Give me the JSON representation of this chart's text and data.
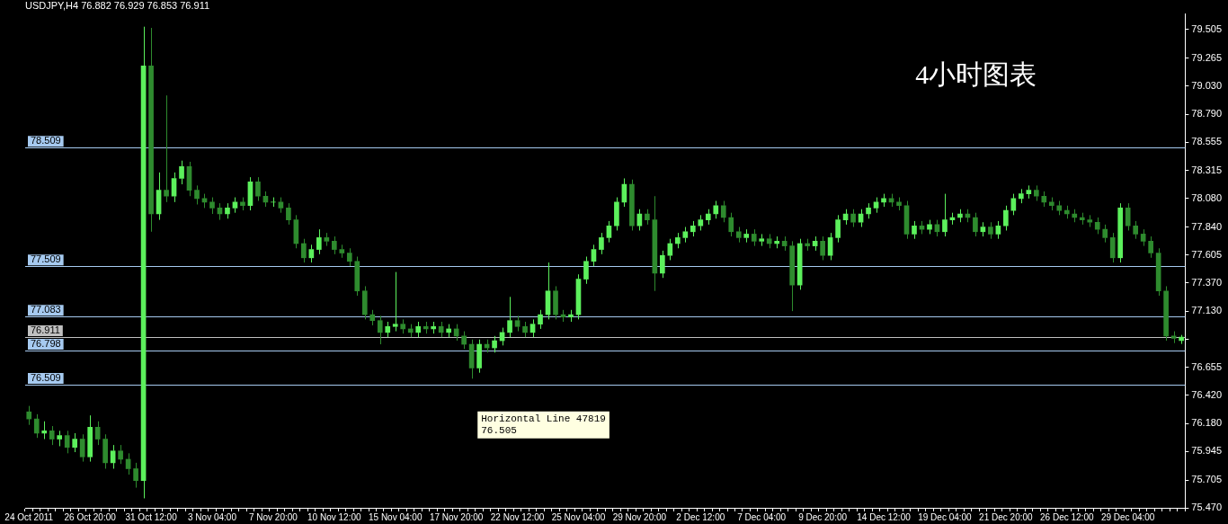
{
  "chart_data": {
    "type": "candlestick",
    "title": "USDJPY,H4 76.882 76.929 76.853 76.911",
    "annotations": [
      "4小时图表",
      "Horizontal Line 47819\n76.505"
    ],
    "colors": [
      "#2e8b2e",
      "#2e8b2e",
      "#5cf05c",
      "#2e8b2e",
      "#5cf05c",
      "#2e8b2e",
      "#5cf05c",
      "#2e8b2e",
      "#5cf05c",
      "#2e8b2e",
      "#2e8b2e",
      "#5cf05c",
      "#2e8b2e",
      "#2e8b2e",
      "#2e8b2e",
      "#5cf05c",
      "#2e8b2e",
      "#5cf05c",
      "#2e8b2e",
      "#5cf05c",
      "#5cf05c",
      "#2e8b2e",
      "#2e8b2e",
      "#2e8b2e",
      "#2e8b2e",
      "#2e8b2e",
      "#5cf05c",
      "#5cf05c",
      "#2e8b2e",
      "#5cf05c",
      "#2e8b2e",
      "#2e8b2e",
      "#5cf05c",
      "#2e8b2e",
      "#2e8b2e",
      "#2e8b2e",
      "#2e8b2e",
      "#5cf05c",
      "#5cf05c",
      "#2e8b2e",
      "#2e8b2e",
      "#2e8b2e",
      "#2e8b2e",
      "#2e8b2e",
      "#2e8b2e",
      "#2e8b2e",
      "#2e8b2e",
      "#5cf05c",
      "#5cf05c",
      "#2e8b2e",
      "#2e8b2e",
      "#5cf05c",
      "#2e8b2e",
      "#5cf05c",
      "#2e8b2e",
      "#5cf05c",
      "#2e8b2e",
      "#2e8b2e",
      "#2e8b2e",
      "#5cf05c",
      "#2e8b2e",
      "#5cf05c",
      "#5cf05c",
      "#5cf05c",
      "#2e8b2e",
      "#2e8b2e",
      "#5cf05c",
      "#5cf05c",
      "#5cf05c",
      "#2e8b2e",
      "#2e8b2e",
      "#5cf05c",
      "#5cf05c",
      "#5cf05c",
      "#5cf05c",
      "#5cf05c",
      "#5cf05c",
      "#5cf05c",
      "#5cf05c",
      "#2e8b2e",
      "#5cf05c",
      "#2e8b2e",
      "#2e8b2e",
      "#5cf05c",
      "#5cf05c",
      "#5cf05c",
      "#5cf05c",
      "#5cf05c",
      "#5cf05c",
      "#5cf05c",
      "#5cf05c",
      "#2e8b2e",
      "#2e8b2e",
      "#2e8b2e",
      "#5cf05c",
      "#2e8b2e",
      "#5cf05c",
      "#2e8b2e",
      "#5cf05c",
      "#2e8b2e",
      "#2e8b2e",
      "#5cf05c",
      "#2e8b2e",
      "#5cf05c",
      "#2e8b2e",
      "#5cf05c",
      "#5cf05c",
      "#5cf05c",
      "#2e8b2e",
      "#5cf05c",
      "#5cf05c",
      "#5cf05c",
      "#5cf05c",
      "#2e8b2e",
      "#2e8b2e",
      "#2e8b2e",
      "#5cf05c",
      "#2e8b2e",
      "#5cf05c",
      "#2e8b2e",
      "#5cf05c",
      "#5cf05c",
      "#5cf05c",
      "#2e8b2e",
      "#2e8b2e",
      "#5cf05c",
      "#2e8b2e",
      "#5cf05c",
      "#5cf05c",
      "#5cf05c",
      "#5cf05c",
      "#5cf05c",
      "#2e8b2e",
      "#2e8b2e",
      "#2e8b2e",
      "#2e8b2e",
      "#2e8b2e",
      "#2e8b2e",
      "#2e8b2e",
      "#2e8b2e",
      "#2e8b2e",
      "#2e8b2e",
      "#2e8b2e",
      "#5cf05c",
      "#2e8b2e",
      "#2e8b2e",
      "#2e8b2e",
      "#2e8b2e",
      "#2e8b2e",
      "#2e8b2e",
      "#2e8b2e",
      "#5cf05c"
    ],
    "grid": false,
    "legend": false,
    "ylim": [
      75.47,
      79.64
    ],
    "yticks": [
      {
        "value": 75.47,
        "label": "75.470"
      },
      {
        "value": 75.705,
        "label": "75.705"
      },
      {
        "value": 75.945,
        "label": "75.945"
      },
      {
        "value": 76.18,
        "label": "76.180"
      },
      {
        "value": 76.42,
        "label": "76.420"
      },
      {
        "value": 76.655,
        "label": "76.655"
      },
      {
        "value": 76.895,
        "label": null
      },
      {
        "value": 77.13,
        "label": "77.130"
      },
      {
        "value": 77.37,
        "label": "77.370"
      },
      {
        "value": 77.605,
        "label": "77.605"
      },
      {
        "value": 77.84,
        "label": "77.840"
      },
      {
        "value": 78.08,
        "label": "78.080"
      },
      {
        "value": 78.315,
        "label": "78.315"
      },
      {
        "value": 78.555,
        "label": "78.555"
      },
      {
        "value": 78.79,
        "label": "78.790"
      },
      {
        "value": 79.03,
        "label": "79.030"
      },
      {
        "value": 79.265,
        "label": "79.265"
      },
      {
        "value": 79.505,
        "label": "79.505"
      }
    ],
    "ref_lines": [
      {
        "axis": "y",
        "value": 78.509,
        "label": "78.509",
        "color": "#a6caf0"
      },
      {
        "axis": "y",
        "value": 77.509,
        "label": "77.509",
        "color": "#a6caf0"
      },
      {
        "axis": "y",
        "value": 77.083,
        "label": "77.083",
        "color": "#a6caf0"
      },
      {
        "axis": "y",
        "value": 76.911,
        "label": "76.911",
        "color": "#c0c0c0"
      },
      {
        "axis": "y",
        "value": 76.798,
        "label": "76.798",
        "color": "#a6caf0"
      },
      {
        "axis": "y",
        "value": 76.509,
        "label": "76.509",
        "color": "#a6caf0"
      }
    ],
    "categories": [
      "24 Oct 2011",
      null,
      null,
      null,
      null,
      null,
      null,
      null,
      "26 Oct 20:00",
      null,
      null,
      null,
      null,
      null,
      null,
      null,
      "31 Oct 12:00",
      null,
      null,
      null,
      null,
      null,
      null,
      null,
      "3 Nov 04:00",
      null,
      null,
      null,
      null,
      null,
      null,
      null,
      "7 Nov 20:00",
      null,
      null,
      null,
      null,
      null,
      null,
      null,
      "10 Nov 12:00",
      null,
      null,
      null,
      null,
      null,
      null,
      null,
      "15 Nov 04:00",
      null,
      null,
      null,
      null,
      null,
      null,
      null,
      "17 Nov 20:00",
      null,
      null,
      null,
      null,
      null,
      null,
      null,
      "22 Nov 12:00",
      null,
      null,
      null,
      null,
      null,
      null,
      null,
      "25 Nov 04:00",
      null,
      null,
      null,
      null,
      null,
      null,
      null,
      "29 Nov 20:00",
      null,
      null,
      null,
      null,
      null,
      null,
      null,
      "2 Dec 12:00",
      null,
      null,
      null,
      null,
      null,
      null,
      null,
      "7 Dec 04:00",
      null,
      null,
      null,
      null,
      null,
      null,
      null,
      "9 Dec 20:00",
      null,
      null,
      null,
      null,
      null,
      null,
      null,
      "14 Dec 12:00",
      null,
      null,
      null,
      null,
      null,
      null,
      null,
      "19 Dec 04:00",
      null,
      null,
      null,
      null,
      null,
      null,
      null,
      "21 Dec 20:00",
      null,
      null,
      null,
      null,
      null,
      null,
      null,
      "26 Dec 12:00",
      null,
      null,
      null,
      null,
      null,
      null,
      null,
      "29 Dec 04:00",
      null,
      null,
      null,
      null,
      null,
      null,
      null
    ],
    "ohlc": [
      [
        76.28,
        76.33,
        76.17,
        76.22
      ],
      [
        76.22,
        76.26,
        76.06,
        76.1
      ],
      [
        76.1,
        76.2,
        76.05,
        76.12
      ],
      [
        76.12,
        76.16,
        76.0,
        76.05
      ],
      [
        76.05,
        76.12,
        75.99,
        76.08
      ],
      [
        76.08,
        76.12,
        75.93,
        75.98
      ],
      [
        75.98,
        76.1,
        75.94,
        76.05
      ],
      [
        76.05,
        76.09,
        75.86,
        75.9
      ],
      [
        75.9,
        76.25,
        75.86,
        76.15
      ],
      [
        76.15,
        76.2,
        76.0,
        76.05
      ],
      [
        76.05,
        76.09,
        75.8,
        75.85
      ],
      [
        75.85,
        76.0,
        75.8,
        75.95
      ],
      [
        75.95,
        76.0,
        75.84,
        75.88
      ],
      [
        75.88,
        75.93,
        75.75,
        75.8
      ],
      [
        75.8,
        75.85,
        75.64,
        75.7
      ],
      [
        75.7,
        79.53,
        75.55,
        79.2
      ],
      [
        79.2,
        79.52,
        77.8,
        77.95
      ],
      [
        77.95,
        78.3,
        77.9,
        78.15
      ],
      [
        78.15,
        78.95,
        78.05,
        78.1
      ],
      [
        78.1,
        78.3,
        78.05,
        78.25
      ],
      [
        78.25,
        78.4,
        78.2,
        78.35
      ],
      [
        78.35,
        78.39,
        78.1,
        78.15
      ],
      [
        78.15,
        78.19,
        78.03,
        78.08
      ],
      [
        78.08,
        78.12,
        78.0,
        78.05
      ],
      [
        78.05,
        78.09,
        77.95,
        78.0
      ],
      [
        78.0,
        78.04,
        77.9,
        77.95
      ],
      [
        77.95,
        78.04,
        77.91,
        78.0
      ],
      [
        78.0,
        78.09,
        77.96,
        78.05
      ],
      [
        78.05,
        78.09,
        77.98,
        78.02
      ],
      [
        78.02,
        78.26,
        77.98,
        78.22
      ],
      [
        78.22,
        78.26,
        78.06,
        78.1
      ],
      [
        78.1,
        78.14,
        78.01,
        78.05
      ],
      [
        78.05,
        78.09,
        78.01,
        78.05
      ],
      [
        78.05,
        78.09,
        77.96,
        78.0
      ],
      [
        78.0,
        78.04,
        77.86,
        77.9
      ],
      [
        77.9,
        77.94,
        77.66,
        77.7
      ],
      [
        77.7,
        77.74,
        77.54,
        77.58
      ],
      [
        77.58,
        77.69,
        77.54,
        77.65
      ],
      [
        77.65,
        77.82,
        77.61,
        77.75
      ],
      [
        77.75,
        77.79,
        77.68,
        77.72
      ],
      [
        77.72,
        77.76,
        77.61,
        77.65
      ],
      [
        77.65,
        77.69,
        77.58,
        77.62
      ],
      [
        77.62,
        77.66,
        77.51,
        77.55
      ],
      [
        77.55,
        77.59,
        77.26,
        77.3
      ],
      [
        77.3,
        77.34,
        77.06,
        77.1
      ],
      [
        77.1,
        77.14,
        77.01,
        77.05
      ],
      [
        77.05,
        77.09,
        76.85,
        76.95
      ],
      [
        76.95,
        77.04,
        76.91,
        77.0
      ],
      [
        77.0,
        77.46,
        76.96,
        77.02
      ],
      [
        77.02,
        77.06,
        76.94,
        76.98
      ],
      [
        76.98,
        77.02,
        76.91,
        76.95
      ],
      [
        76.95,
        77.04,
        76.91,
        77.0
      ],
      [
        77.0,
        77.04,
        76.94,
        76.98
      ],
      [
        76.98,
        77.04,
        76.94,
        77.0
      ],
      [
        77.0,
        77.04,
        76.91,
        76.95
      ],
      [
        76.95,
        77.02,
        76.91,
        76.98
      ],
      [
        76.98,
        77.02,
        76.88,
        76.92
      ],
      [
        76.92,
        76.96,
        76.81,
        76.85
      ],
      [
        76.85,
        76.89,
        76.56,
        76.65
      ],
      [
        76.65,
        76.89,
        76.61,
        76.85
      ],
      [
        76.85,
        76.89,
        76.78,
        76.82
      ],
      [
        76.82,
        76.92,
        76.78,
        76.88
      ],
      [
        76.88,
        76.99,
        76.84,
        76.95
      ],
      [
        76.95,
        77.25,
        76.91,
        77.05
      ],
      [
        77.05,
        77.09,
        76.96,
        77.0
      ],
      [
        77.0,
        77.04,
        76.91,
        76.95
      ],
      [
        76.95,
        77.06,
        76.91,
        77.02
      ],
      [
        77.02,
        77.14,
        76.98,
        77.1
      ],
      [
        77.1,
        77.54,
        77.06,
        77.3
      ],
      [
        77.3,
        77.34,
        77.06,
        77.1
      ],
      [
        77.1,
        77.14,
        77.04,
        77.08
      ],
      [
        77.08,
        77.14,
        77.04,
        77.1
      ],
      [
        77.1,
        77.44,
        77.06,
        77.4
      ],
      [
        77.4,
        77.59,
        77.36,
        77.55
      ],
      [
        77.55,
        77.69,
        77.51,
        77.65
      ],
      [
        77.65,
        77.79,
        77.61,
        77.75
      ],
      [
        77.75,
        77.89,
        77.71,
        77.85
      ],
      [
        77.85,
        78.09,
        77.81,
        78.05
      ],
      [
        78.05,
        78.25,
        78.01,
        78.2
      ],
      [
        78.2,
        78.24,
        77.81,
        77.85
      ],
      [
        77.85,
        77.99,
        77.81,
        77.95
      ],
      [
        77.95,
        77.99,
        77.86,
        77.9
      ],
      [
        77.9,
        78.1,
        77.3,
        77.45
      ],
      [
        77.45,
        77.64,
        77.41,
        77.6
      ],
      [
        77.6,
        77.74,
        77.56,
        77.7
      ],
      [
        77.7,
        77.79,
        77.66,
        77.75
      ],
      [
        77.75,
        77.84,
        77.71,
        77.8
      ],
      [
        77.8,
        77.89,
        77.76,
        77.85
      ],
      [
        77.85,
        77.94,
        77.81,
        77.9
      ],
      [
        77.9,
        77.99,
        77.86,
        77.95
      ],
      [
        77.95,
        78.06,
        77.91,
        78.02
      ],
      [
        78.02,
        78.06,
        77.88,
        77.92
      ],
      [
        77.92,
        77.96,
        77.76,
        77.8
      ],
      [
        77.8,
        77.84,
        77.71,
        77.75
      ],
      [
        77.75,
        77.82,
        77.71,
        77.78
      ],
      [
        77.78,
        77.82,
        77.68,
        77.72
      ],
      [
        77.72,
        77.78,
        77.68,
        77.74
      ],
      [
        77.74,
        77.78,
        77.66,
        77.7
      ],
      [
        77.7,
        77.76,
        77.66,
        77.72
      ],
      [
        77.72,
        77.76,
        77.64,
        77.68
      ],
      [
        77.68,
        77.72,
        77.13,
        77.35
      ],
      [
        77.35,
        77.74,
        77.31,
        77.7
      ],
      [
        77.7,
        77.74,
        77.64,
        77.68
      ],
      [
        77.68,
        77.76,
        77.64,
        77.72
      ],
      [
        77.72,
        77.76,
        77.56,
        77.6
      ],
      [
        77.6,
        77.79,
        77.56,
        77.75
      ],
      [
        77.75,
        77.94,
        77.71,
        77.9
      ],
      [
        77.9,
        77.99,
        77.86,
        77.95
      ],
      [
        77.95,
        77.99,
        77.84,
        77.88
      ],
      [
        77.88,
        77.99,
        77.84,
        77.95
      ],
      [
        77.95,
        78.04,
        77.91,
        78.0
      ],
      [
        78.0,
        78.09,
        77.96,
        78.05
      ],
      [
        78.05,
        78.12,
        78.01,
        78.08
      ],
      [
        78.08,
        78.12,
        78.01,
        78.05
      ],
      [
        78.05,
        78.09,
        77.98,
        78.02
      ],
      [
        78.02,
        78.06,
        77.74,
        77.78
      ],
      [
        77.78,
        77.89,
        77.74,
        77.85
      ],
      [
        77.85,
        77.89,
        77.78,
        77.82
      ],
      [
        77.82,
        77.9,
        77.78,
        77.86
      ],
      [
        77.86,
        77.9,
        77.76,
        77.8
      ],
      [
        77.8,
        78.12,
        77.76,
        77.9
      ],
      [
        77.9,
        77.96,
        77.86,
        77.92
      ],
      [
        77.92,
        77.99,
        77.88,
        77.95
      ],
      [
        77.95,
        77.99,
        77.88,
        77.92
      ],
      [
        77.92,
        77.96,
        77.76,
        77.8
      ],
      [
        77.8,
        77.88,
        77.76,
        77.84
      ],
      [
        77.84,
        77.88,
        77.74,
        77.78
      ],
      [
        77.78,
        77.89,
        77.74,
        77.85
      ],
      [
        77.85,
        78.02,
        77.81,
        77.98
      ],
      [
        77.98,
        78.12,
        77.94,
        78.08
      ],
      [
        78.08,
        78.16,
        78.04,
        78.12
      ],
      [
        78.12,
        78.19,
        78.08,
        78.15
      ],
      [
        78.15,
        78.19,
        78.06,
        78.1
      ],
      [
        78.1,
        78.14,
        78.01,
        78.05
      ],
      [
        78.05,
        78.09,
        77.98,
        78.02
      ],
      [
        78.02,
        78.06,
        77.94,
        77.98
      ],
      [
        77.98,
        78.02,
        77.91,
        77.95
      ],
      [
        77.95,
        77.99,
        77.88,
        77.92
      ],
      [
        77.92,
        77.96,
        77.86,
        77.9
      ],
      [
        77.9,
        77.94,
        77.84,
        77.88
      ],
      [
        77.88,
        77.92,
        77.78,
        77.82
      ],
      [
        77.82,
        77.86,
        77.71,
        77.75
      ],
      [
        77.75,
        77.79,
        77.54,
        77.58
      ],
      [
        77.58,
        78.04,
        77.54,
        78.0
      ],
      [
        78.0,
        78.04,
        77.81,
        77.85
      ],
      [
        77.85,
        77.89,
        77.74,
        77.78
      ],
      [
        77.78,
        77.82,
        77.68,
        77.72
      ],
      [
        77.72,
        77.76,
        77.58,
        77.62
      ],
      [
        77.62,
        77.66,
        77.26,
        77.3
      ],
      [
        77.3,
        77.34,
        76.88,
        76.92
      ],
      [
        76.92,
        76.96,
        76.86,
        76.9
      ],
      [
        76.882,
        76.929,
        76.853,
        76.911
      ]
    ]
  }
}
